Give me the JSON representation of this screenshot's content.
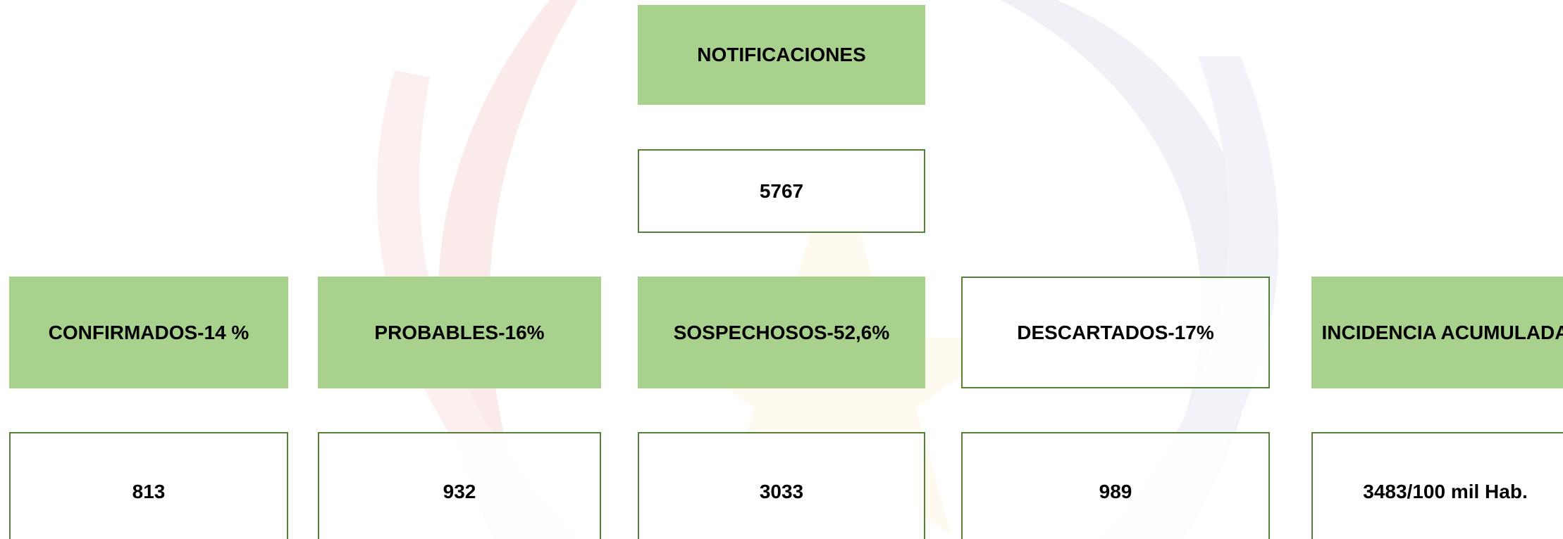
{
  "header": {
    "title": "NOTIFICACIONES",
    "total": "5767"
  },
  "groups": [
    {
      "label": "CONFIRMADOS-14 %",
      "value": "813"
    },
    {
      "label": "PROBABLES-16%",
      "value": "932"
    },
    {
      "label": "SOSPECHOSOS-52,6%",
      "value": "3033"
    },
    {
      "label": "DESCARTADOS-17%",
      "value": "989"
    },
    {
      "label": "INCIDENCIA ACUMULADA",
      "value": "3483/100 mil Hab."
    }
  ]
}
